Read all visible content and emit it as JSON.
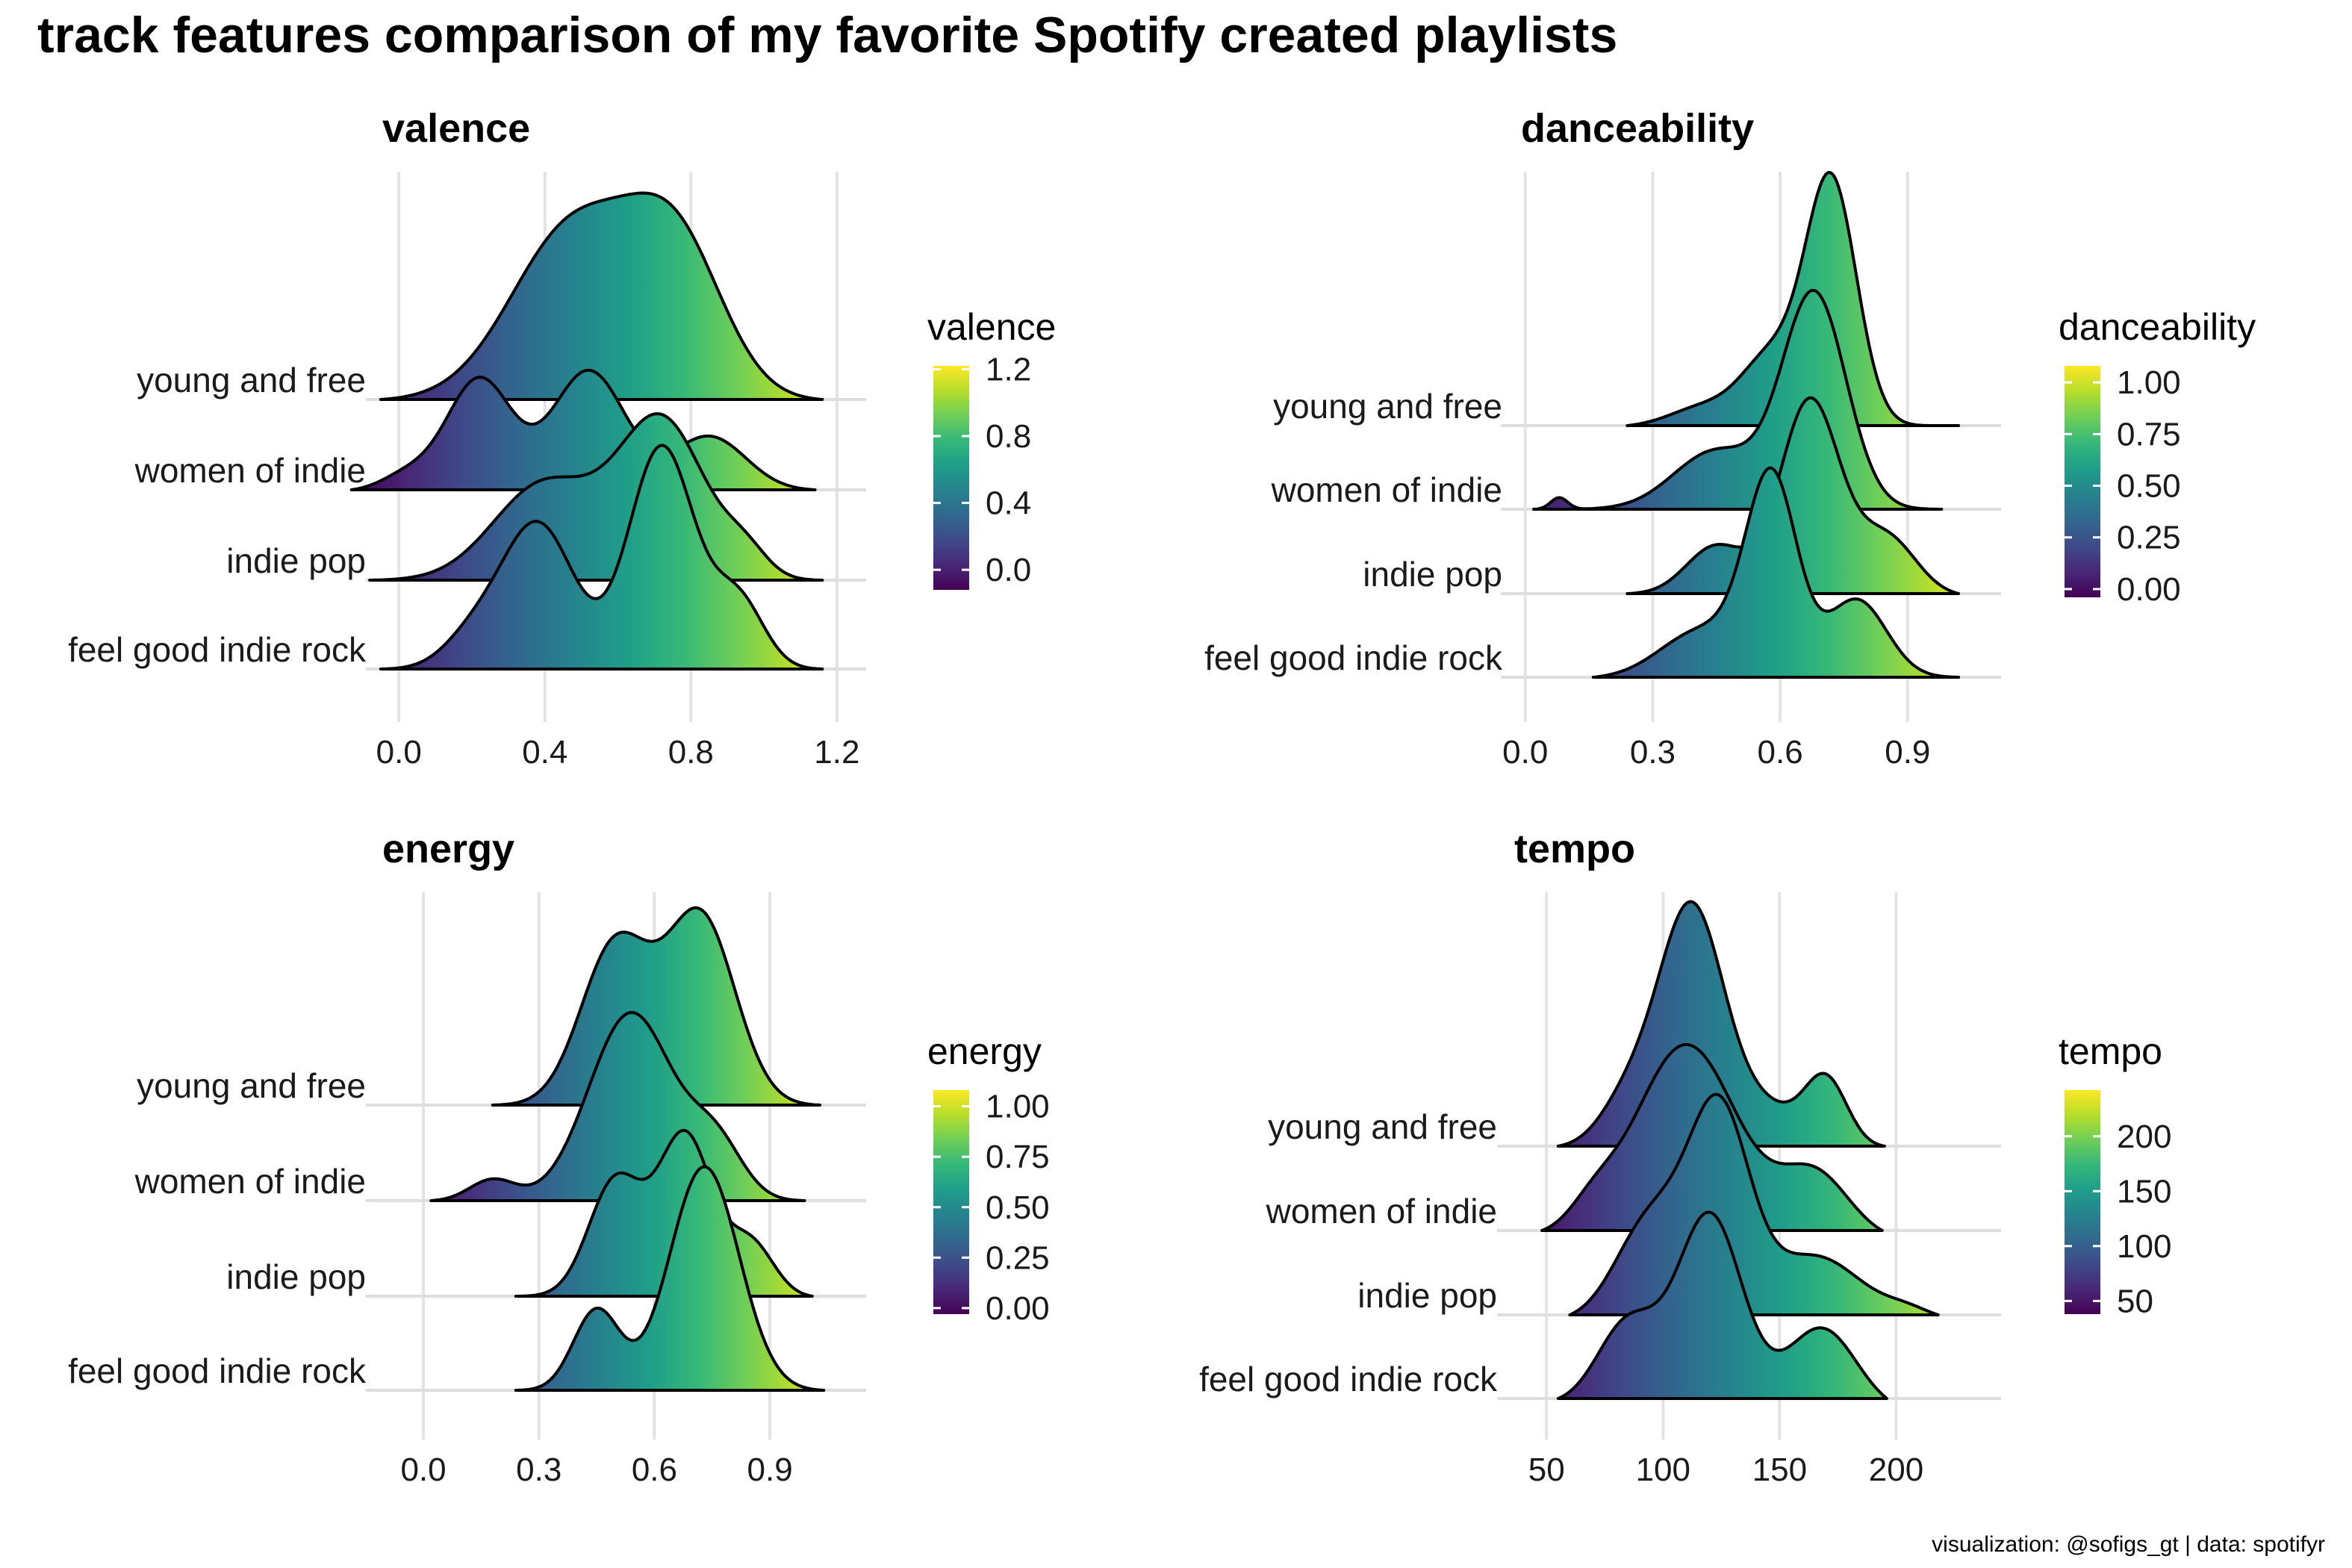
{
  "title": "track features comparison of my favorite Spotify created playlists",
  "caption": "visualization: @sofigs_gt | data: spotifyr",
  "colors": {
    "viridis": [
      "#440154",
      "#482878",
      "#3e4a89",
      "#31688e",
      "#26828e",
      "#1f9e89",
      "#35b779",
      "#6ece58",
      "#b5de2b",
      "#fde725"
    ],
    "outline": "#000000",
    "grid": "#e3e3e3"
  },
  "chart_data": [
    {
      "type": "ridgeline",
      "title": "valence",
      "categories": [
        "young and free",
        "women of indie",
        "indie pop",
        "feel good indie rock"
      ],
      "x_ticks": [
        0.0,
        0.4,
        0.8,
        1.2
      ],
      "x_tick_labels": [
        "0.0",
        "0.4",
        "0.8",
        "1.2"
      ],
      "xlim": [
        -0.07,
        1.28
      ],
      "legend": {
        "title": "valence",
        "range": [
          -0.12,
          1.22
        ],
        "ticks": [
          0.0,
          0.4,
          0.8,
          1.2
        ],
        "tick_labels": [
          "0.0",
          "0.4",
          "0.8",
          "1.2"
        ]
      },
      "series": [
        {
          "name": "young and free",
          "range": [
            -0.05,
            1.16
          ],
          "peaks": [
            {
              "mu": 0.48,
              "s": 0.17,
              "w": 0.9
            },
            {
              "mu": 0.76,
              "s": 0.13,
              "w": 0.75
            }
          ]
        },
        {
          "name": "women of indie",
          "range": [
            -0.13,
            1.14
          ],
          "peaks": [
            {
              "mu": 0.22,
              "s": 0.09,
              "w": 0.58
            },
            {
              "mu": 0.52,
              "s": 0.1,
              "w": 0.62
            },
            {
              "mu": 0.85,
              "s": 0.1,
              "w": 0.28
            },
            {
              "mu": 0.02,
              "s": 0.07,
              "w": 0.08
            }
          ]
        },
        {
          "name": "indie pop",
          "range": [
            -0.08,
            1.16
          ],
          "peaks": [
            {
              "mu": 0.4,
              "s": 0.14,
              "w": 0.5
            },
            {
              "mu": 0.72,
              "s": 0.12,
              "w": 0.82
            },
            {
              "mu": 0.95,
              "s": 0.06,
              "w": 0.12
            }
          ]
        },
        {
          "name": "feel good indie rock",
          "range": [
            -0.05,
            1.16
          ],
          "peaks": [
            {
              "mu": 0.38,
              "s": 0.1,
              "w": 0.75
            },
            {
              "mu": 0.72,
              "s": 0.09,
              "w": 1.15
            },
            {
              "mu": 0.93,
              "s": 0.07,
              "w": 0.35
            },
            {
              "mu": 0.2,
              "s": 0.08,
              "w": 0.15
            }
          ]
        }
      ]
    },
    {
      "type": "ridgeline",
      "title": "danceability",
      "categories": [
        "young and free",
        "women of indie",
        "indie pop",
        "feel good indie rock"
      ],
      "x_ticks": [
        0.0,
        0.3,
        0.6,
        0.9
      ],
      "x_tick_labels": [
        "0.0",
        "0.3",
        "0.6",
        "0.9"
      ],
      "xlim": [
        -0.04,
        1.12
      ],
      "legend": {
        "title": "danceability",
        "range": [
          -0.04,
          1.08
        ],
        "ticks": [
          0.0,
          0.25,
          0.5,
          0.75,
          1.0
        ],
        "tick_labels": [
          "0.00",
          "0.25",
          "0.50",
          "0.75",
          "1.00"
        ]
      },
      "series": [
        {
          "name": "young and free",
          "range": [
            0.24,
            1.02
          ],
          "peaks": [
            {
              "mu": 0.72,
              "s": 0.06,
              "w": 1.25
            },
            {
              "mu": 0.58,
              "s": 0.07,
              "w": 0.35
            },
            {
              "mu": 0.42,
              "s": 0.08,
              "w": 0.1
            }
          ]
        },
        {
          "name": "women of indie",
          "range": [
            0.02,
            0.98
          ],
          "peaks": [
            {
              "mu": 0.68,
              "s": 0.075,
              "w": 1.1
            },
            {
              "mu": 0.45,
              "s": 0.1,
              "w": 0.3
            },
            {
              "mu": 0.08,
              "s": 0.02,
              "w": 0.06
            }
          ]
        },
        {
          "name": "indie pop",
          "range": [
            0.24,
            1.02
          ],
          "peaks": [
            {
              "mu": 0.67,
              "s": 0.07,
              "w": 1.0
            },
            {
              "mu": 0.85,
              "s": 0.07,
              "w": 0.3
            },
            {
              "mu": 0.45,
              "s": 0.07,
              "w": 0.25
            }
          ]
        },
        {
          "name": "feel good indie rock",
          "range": [
            0.16,
            1.02
          ],
          "peaks": [
            {
              "mu": 0.58,
              "s": 0.06,
              "w": 1.0
            },
            {
              "mu": 0.78,
              "s": 0.07,
              "w": 0.4
            },
            {
              "mu": 0.42,
              "s": 0.1,
              "w": 0.25
            }
          ]
        }
      ]
    },
    {
      "type": "ridgeline",
      "title": "energy",
      "categories": [
        "young and free",
        "women of indie",
        "indie pop",
        "feel good indie rock"
      ],
      "x_ticks": [
        0.0,
        0.3,
        0.6,
        0.9
      ],
      "x_tick_labels": [
        "0.0",
        "0.3",
        "0.6",
        "0.9"
      ],
      "xlim": [
        -0.13,
        1.15
      ],
      "legend": {
        "title": "energy",
        "range": [
          -0.03,
          1.08
        ],
        "ticks": [
          0.0,
          0.25,
          0.5,
          0.75,
          1.0
        ],
        "tick_labels": [
          "0.00",
          "0.25",
          "0.50",
          "0.75",
          "1.00"
        ]
      },
      "series": [
        {
          "name": "young and free",
          "range": [
            0.18,
            1.03
          ],
          "peaks": [
            {
              "mu": 0.5,
              "s": 0.09,
              "w": 0.9
            },
            {
              "mu": 0.72,
              "s": 0.09,
              "w": 1.05
            }
          ]
        },
        {
          "name": "women of indie",
          "range": [
            0.02,
            0.99
          ],
          "peaks": [
            {
              "mu": 0.54,
              "s": 0.11,
              "w": 1.05
            },
            {
              "mu": 0.76,
              "s": 0.07,
              "w": 0.3
            },
            {
              "mu": 0.18,
              "s": 0.06,
              "w": 0.12
            }
          ]
        },
        {
          "name": "indie pop",
          "range": [
            0.24,
            1.01
          ],
          "peaks": [
            {
              "mu": 0.5,
              "s": 0.07,
              "w": 0.65
            },
            {
              "mu": 0.68,
              "s": 0.07,
              "w": 0.9
            },
            {
              "mu": 0.85,
              "s": 0.06,
              "w": 0.3
            }
          ]
        },
        {
          "name": "feel good indie rock",
          "range": [
            0.24,
            1.04
          ],
          "peaks": [
            {
              "mu": 0.45,
              "s": 0.06,
              "w": 0.45
            },
            {
              "mu": 0.73,
              "s": 0.09,
              "w": 1.25
            }
          ]
        }
      ]
    },
    {
      "type": "ridgeline",
      "title": "tempo",
      "categories": [
        "young and free",
        "women of indie",
        "indie pop",
        "feel good indie rock"
      ],
      "x_ticks": [
        50,
        100,
        150,
        200
      ],
      "x_tick_labels": [
        "50",
        "100",
        "150",
        "200"
      ],
      "xlim": [
        32,
        245
      ],
      "legend": {
        "title": "tempo",
        "range": [
          38,
          242
        ],
        "ticks": [
          50,
          100,
          150,
          200
        ],
        "tick_labels": [
          "50",
          "100",
          "150",
          "200"
        ]
      },
      "series": [
        {
          "name": "young and free",
          "range": [
            55,
            195
          ],
          "peaks": [
            {
              "mu": 112,
              "s": 14,
              "w": 1.3
            },
            {
              "mu": 85,
              "s": 12,
              "w": 0.25
            },
            {
              "mu": 170,
              "s": 9,
              "w": 0.35
            },
            {
              "mu": 145,
              "s": 15,
              "w": 0.2
            }
          ]
        },
        {
          "name": "women of indie",
          "range": [
            48,
            194
          ],
          "peaks": [
            {
              "mu": 110,
              "s": 22,
              "w": 1.05
            },
            {
              "mu": 165,
              "s": 15,
              "w": 0.35
            },
            {
              "mu": 70,
              "s": 10,
              "w": 0.12
            }
          ]
        },
        {
          "name": "indie pop",
          "range": [
            60,
            218
          ],
          "peaks": [
            {
              "mu": 124,
              "s": 13,
              "w": 1.1
            },
            {
              "mu": 95,
              "s": 15,
              "w": 0.55
            },
            {
              "mu": 165,
              "s": 20,
              "w": 0.35
            },
            {
              "mu": 205,
              "s": 10,
              "w": 0.05
            }
          ]
        },
        {
          "name": "feel good indie rock",
          "range": [
            55,
            196
          ],
          "peaks": [
            {
              "mu": 120,
              "s": 14,
              "w": 1.05
            },
            {
              "mu": 85,
              "s": 13,
              "w": 0.45
            },
            {
              "mu": 168,
              "s": 15,
              "w": 0.45
            }
          ]
        }
      ]
    }
  ]
}
